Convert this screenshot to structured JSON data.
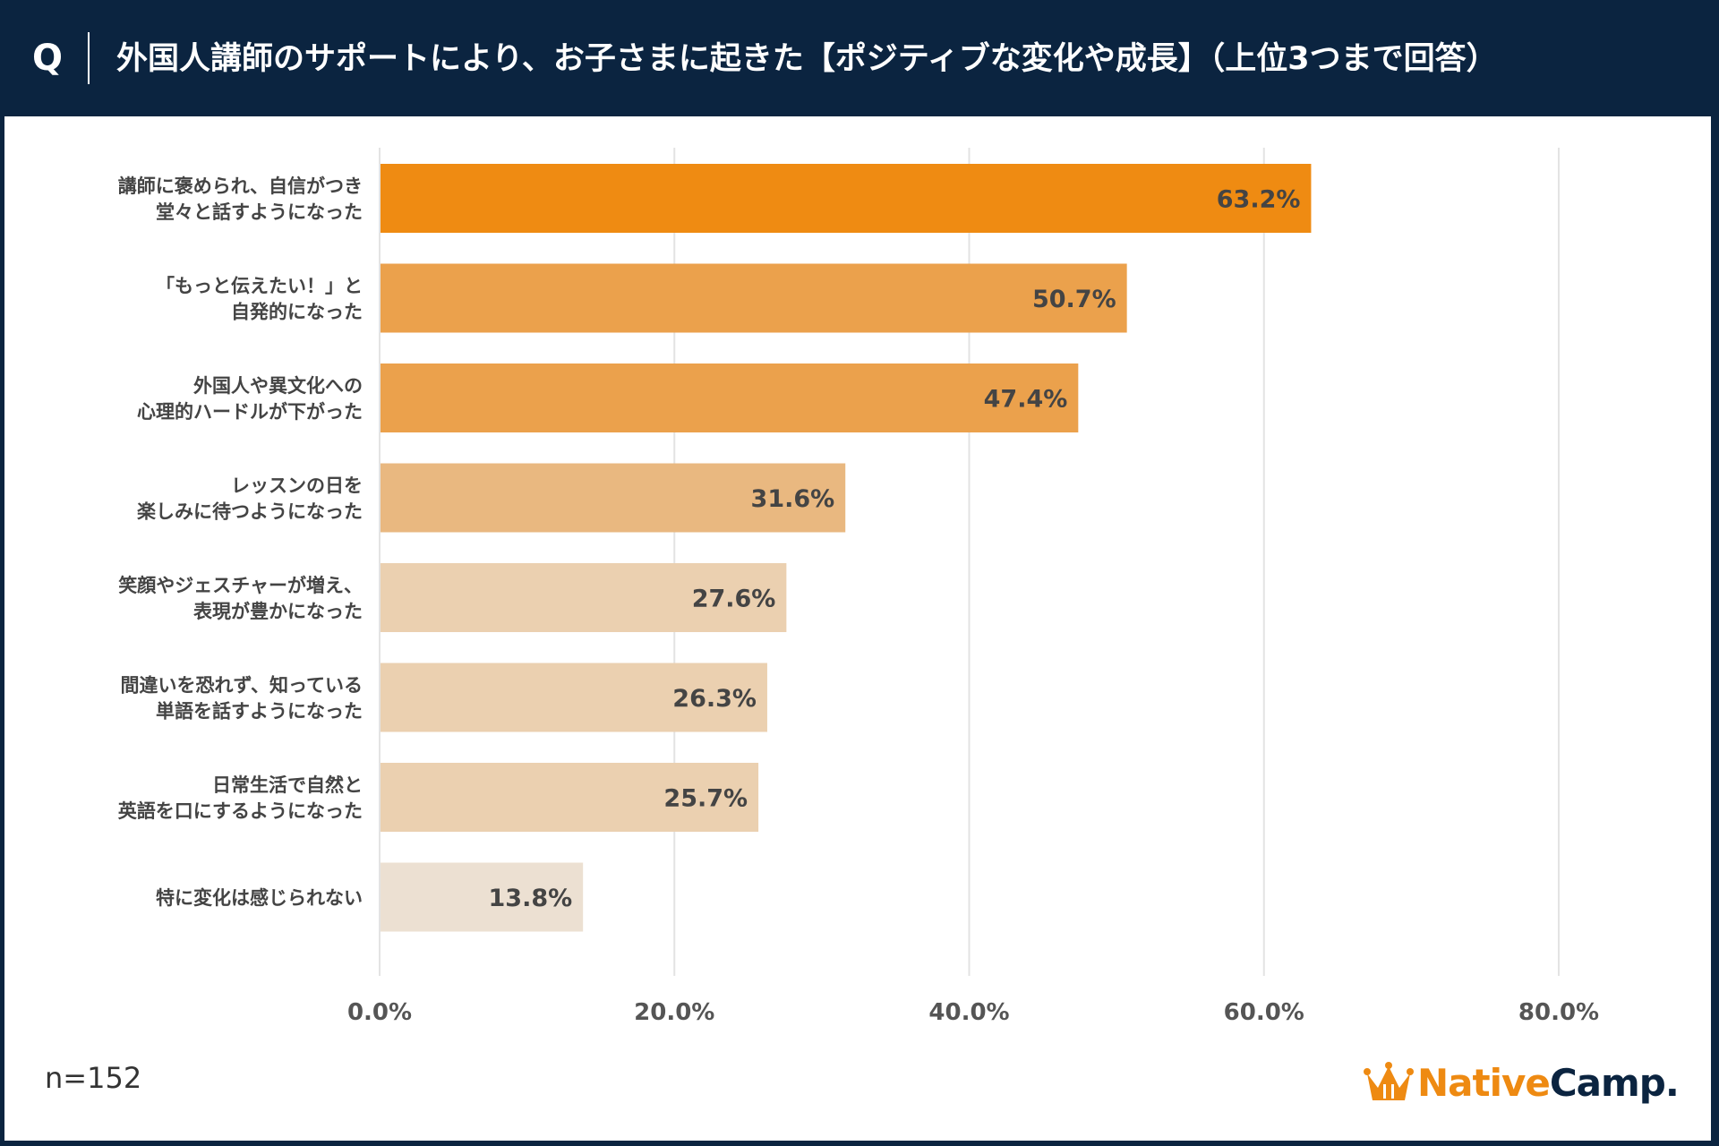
{
  "header": {
    "q_mark": "Q",
    "title": "外国人講師のサポートにより、お子さまに起きた【ポジティブな変化や成長】（上位3つまで回答）"
  },
  "footer": {
    "sample_size": "n=152",
    "logo_part1": "Native",
    "logo_part2": "Camp."
  },
  "chart_data": {
    "type": "bar",
    "orientation": "horizontal",
    "title": "",
    "xlabel": "",
    "ylabel": "",
    "xlim": [
      0,
      80
    ],
    "xticks": [
      0,
      20,
      40,
      60,
      80
    ],
    "tick_format": "%",
    "grid": true,
    "categories": [
      [
        "講師に褒められ、自信がつき",
        "堂々と話すようになった"
      ],
      [
        "「もっと伝えたい！」と",
        "自発的になった"
      ],
      [
        "外国人や異文化への",
        "心理的ハードルが下がった"
      ],
      [
        "レッスンの日を",
        "楽しみに待つようになった"
      ],
      [
        "笑顔やジェスチャーが増え、",
        "表現が豊かになった"
      ],
      [
        "間違いを恐れず、知っている",
        "単語を話すようになった"
      ],
      [
        "日常生活で自然と",
        "英語を口にするようになった"
      ],
      [
        "特に変化は感じられない"
      ]
    ],
    "values": [
      63.2,
      50.7,
      47.4,
      31.6,
      27.6,
      26.3,
      25.7,
      13.8
    ],
    "colors": [
      "#ef8b12",
      "#eba14c",
      "#eba14c",
      "#e9b880",
      "#ebd0b0",
      "#ebd0b0",
      "#ebd0b0",
      "#ece0d2"
    ]
  },
  "colors": {
    "header_bg": "#0b2440",
    "gridline": "#e3e3e3",
    "text_dark": "#444444",
    "logo_accent": "#ee8a12"
  }
}
